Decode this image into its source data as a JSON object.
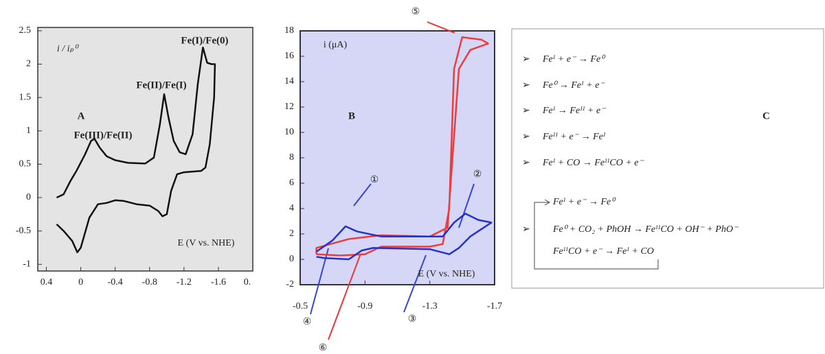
{
  "chart_data": [
    {
      "type": "line",
      "xlim": [
        0.5,
        -2.0
      ],
      "ylim": [
        -1.1,
        2.55
      ],
      "xticks": [
        0.4,
        0,
        -0.4,
        -0.8,
        -1.2,
        -1.6
      ],
      "yticks": [
        -1,
        -0.5,
        0,
        0.5,
        1,
        1.5,
        2,
        2.5
      ],
      "series": [
        {
          "color": "#111111",
          "x": [
            0.28,
            0.2,
            0.12,
            0.05,
            -0.05,
            -0.12,
            -0.16,
            -0.22,
            -0.3,
            -0.4,
            -0.55,
            -0.75,
            -0.85,
            -0.92,
            -0.97,
            -1.02,
            -1.08,
            -1.15,
            -1.22,
            -1.3,
            -1.36,
            -1.42,
            -1.47,
            -1.52,
            -1.56,
            -1.55,
            -1.5,
            -1.45,
            -1.4,
            -1.2,
            -1.12,
            -1.05,
            -1.0,
            -0.95,
            -0.9,
            -0.8,
            -0.65,
            -0.5,
            -0.4,
            -0.3,
            -0.2,
            -0.1,
            0.0,
            0.04,
            0.1,
            0.2,
            0.28
          ],
          "values": [
            0.0,
            0.05,
            0.25,
            0.4,
            0.65,
            0.85,
            0.88,
            0.75,
            0.62,
            0.56,
            0.52,
            0.51,
            0.6,
            1.1,
            1.55,
            1.2,
            0.85,
            0.68,
            0.65,
            0.95,
            1.7,
            2.25,
            2.02,
            2.0,
            2.0,
            1.5,
            0.8,
            0.45,
            0.4,
            0.38,
            0.35,
            0.1,
            -0.25,
            -0.28,
            -0.2,
            -0.12,
            -0.1,
            -0.05,
            -0.04,
            -0.08,
            -0.1,
            -0.3,
            -0.75,
            -0.82,
            -0.65,
            -0.5,
            -0.4
          ]
        }
      ],
      "annotations": [
        "Fe(I)/Fe(0)",
        "Fe(II)/Fe(I)",
        "Fe(III)/Fe(II)",
        "A",
        "i / iₚ⁰",
        "E (V vs. NHE)",
        "0."
      ]
    },
    {
      "type": "line",
      "xlim": [
        -0.5,
        -1.7
      ],
      "ylim": [
        -2,
        18
      ],
      "xticks": [
        -0.5,
        -0.9,
        -1.3,
        -1.7
      ],
      "yticks": [
        -2,
        0,
        2,
        4,
        6,
        8,
        10,
        12,
        14,
        16,
        18
      ],
      "series": [
        {
          "color": "#ee3b3b",
          "x": [
            -0.6,
            -0.75,
            -0.9,
            -1.0,
            -1.3,
            -1.38,
            -1.42,
            -1.45,
            -1.5,
            -1.62,
            -1.66,
            -1.55,
            -1.48,
            -1.44,
            -1.41,
            -1.3,
            -1.0,
            -0.8,
            -0.6,
            -0.6
          ],
          "values": [
            0.4,
            0.3,
            0.4,
            1.0,
            1.0,
            1.2,
            4,
            15,
            17.5,
            17.3,
            17.0,
            16.5,
            15,
            8,
            2.5,
            1.8,
            1.9,
            1.6,
            0.9,
            0.4
          ]
        },
        {
          "color": "#2233cc",
          "x": [
            -0.6,
            -0.7,
            -0.78,
            -0.85,
            -1.0,
            -1.38,
            -1.45,
            -1.52,
            -1.6,
            -1.68,
            -1.55,
            -1.48,
            -1.42,
            -1.3,
            -0.95,
            -0.88,
            -0.8,
            -0.65,
            -0.6
          ],
          "values": [
            0.6,
            1.5,
            2.6,
            2.2,
            1.8,
            1.8,
            2.9,
            3.6,
            3.1,
            2.9,
            1.8,
            0.9,
            0.4,
            0.8,
            0.9,
            0.7,
            0.0,
            0.1,
            0.2
          ]
        }
      ],
      "annotations": [
        "i (μA)",
        "B",
        "E (V vs. NHE)",
        "①",
        "②",
        "③",
        "④",
        "⑤",
        "⑥"
      ]
    }
  ],
  "panel_c": {
    "label": "C",
    "equations": [
      "Feᴵ + e⁻ → Fe⁰",
      "Fe⁰ → Feᴵ + e⁻",
      "Feᴵ → Feᴵᴵ + e⁻",
      "Feᴵᴵ + e⁻ → Feᴵ",
      "Feᴵ + CO → FeᴵᴵCO + e⁻"
    ],
    "cycle": [
      "Feᴵ + e⁻ → Fe⁰",
      "Fe⁰ + CO₂ + PhOH → FeᴵᴵCO + OH⁻ + PhO⁻",
      "FeᴵᴵCO + e⁻ → Feᴵ + CO"
    ]
  }
}
